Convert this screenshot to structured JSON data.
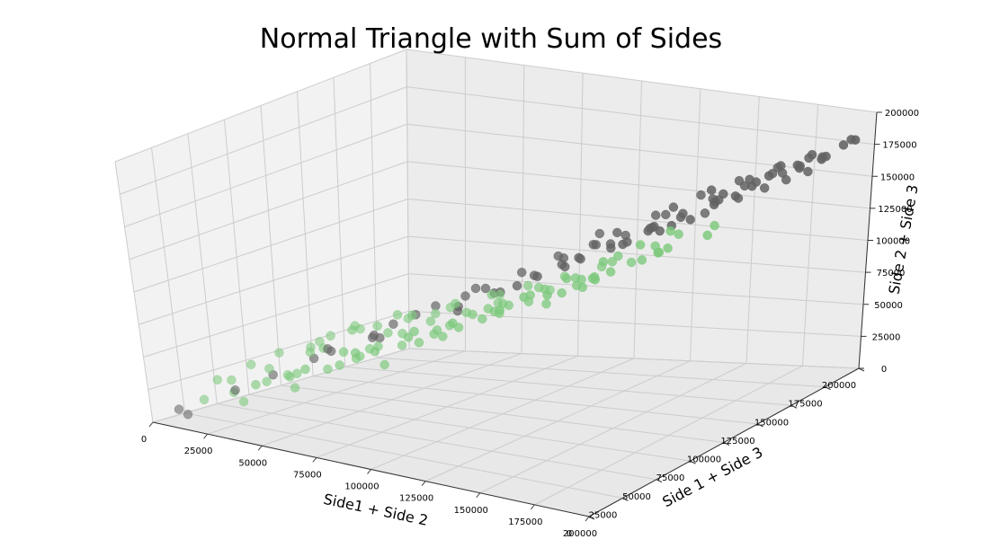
{
  "chart_data": {
    "type": "scatter",
    "title": "Normal Triangle with Sum of Sides",
    "xlabel": "Side1 + Side 2",
    "ylabel": "Side 1 + Side 3",
    "zlabel": "Side 2 + Side 3",
    "xlim": [
      0,
      200000
    ],
    "ylim": [
      0,
      200000
    ],
    "zlim": [
      0,
      200000
    ],
    "xticks": [
      0,
      25000,
      50000,
      75000,
      100000,
      125000,
      150000,
      175000,
      200000
    ],
    "yticks": [
      0,
      25000,
      50000,
      75000,
      100000,
      125000,
      150000,
      175000,
      200000
    ],
    "zticks": [
      0,
      25000,
      50000,
      75000,
      100000,
      125000,
      150000,
      175000,
      200000
    ],
    "grid": true,
    "legend": "none",
    "colors": {
      "green": "#7dc97d",
      "gray": "#636363",
      "pane": "#eeeeee",
      "grid": "#cccccc"
    },
    "series": [
      {
        "color": "#7dc97d",
        "points": [
          [
            18000,
            12000,
            20000
          ],
          [
            25000,
            30000,
            15000
          ],
          [
            30000,
            15000,
            38000
          ],
          [
            40000,
            45000,
            25000
          ],
          [
            45000,
            20000,
            50000
          ],
          [
            52000,
            60000,
            40000
          ],
          [
            55000,
            35000,
            60000
          ],
          [
            60000,
            80000,
            35000
          ],
          [
            62000,
            25000,
            70000
          ],
          [
            68000,
            50000,
            55000
          ],
          [
            70000,
            90000,
            50000
          ],
          [
            72000,
            40000,
            80000
          ],
          [
            78000,
            65000,
            60000
          ],
          [
            80000,
            30000,
            90000
          ],
          [
            82000,
            100000,
            60000
          ],
          [
            85000,
            55000,
            75000
          ],
          [
            88000,
            75000,
            70000
          ],
          [
            90000,
            45000,
            95000
          ],
          [
            92000,
            110000,
            70000
          ],
          [
            95000,
            60000,
            85000
          ],
          [
            98000,
            85000,
            80000
          ],
          [
            100000,
            40000,
            100000
          ],
          [
            102000,
            120000,
            80000
          ],
          [
            105000,
            70000,
            90000
          ],
          [
            108000,
            95000,
            85000
          ],
          [
            110000,
            55000,
            105000
          ],
          [
            112000,
            130000,
            90000
          ],
          [
            115000,
            80000,
            95000
          ],
          [
            118000,
            105000,
            95000
          ],
          [
            120000,
            65000,
            110000
          ],
          [
            122000,
            140000,
            100000
          ],
          [
            125000,
            90000,
            105000
          ],
          [
            128000,
            115000,
            100000
          ],
          [
            130000,
            75000,
            115000
          ],
          [
            132000,
            150000,
            110000
          ],
          [
            135000,
            100000,
            110000
          ],
          [
            138000,
            125000,
            115000
          ],
          [
            140000,
            85000,
            120000
          ],
          [
            142000,
            155000,
            120000
          ],
          [
            145000,
            110000,
            120000
          ],
          [
            148000,
            135000,
            120000
          ],
          [
            150000,
            95000,
            125000
          ],
          [
            35000,
            50000,
            30000
          ],
          [
            48000,
            70000,
            45000
          ],
          [
            58000,
            40000,
            62000
          ],
          [
            65000,
            95000,
            55000
          ],
          [
            75000,
            20000,
            85000
          ],
          [
            87000,
            35000,
            90000
          ],
          [
            96000,
            125000,
            75000
          ],
          [
            104000,
            50000,
            98000
          ],
          [
            115000,
            145000,
            85000
          ],
          [
            126000,
            60000,
            108000
          ],
          [
            134000,
            160000,
            100000
          ],
          [
            143000,
            70000,
            118000
          ],
          [
            22000,
            45000,
            22000
          ],
          [
            33000,
            65000,
            30000
          ],
          [
            44000,
            85000,
            38000
          ],
          [
            56000,
            105000,
            45000
          ],
          [
            67000,
            120000,
            52000
          ],
          [
            79000,
            135000,
            58000
          ],
          [
            91000,
            150000,
            65000
          ],
          [
            103000,
            165000,
            72000
          ],
          [
            28000,
            8000,
            40000
          ],
          [
            42000,
            12000,
            55000
          ],
          [
            57000,
            10000,
            70000
          ],
          [
            73000,
            15000,
            82000
          ],
          [
            89000,
            20000,
            95000
          ],
          [
            106000,
            28000,
            105000
          ],
          [
            121000,
            35000,
            115000
          ],
          [
            137000,
            45000,
            125000
          ],
          [
            50000,
            25000,
            45000
          ],
          [
            63000,
            55000,
            50000
          ],
          [
            76000,
            45000,
            65000
          ],
          [
            84000,
            85000,
            60000
          ],
          [
            97000,
            70000,
            78000
          ],
          [
            109000,
            120000,
            75000
          ],
          [
            117000,
            95000,
            90000
          ],
          [
            129000,
            110000,
            98000
          ],
          [
            139000,
            140000,
            105000
          ],
          [
            147000,
            120000,
            115000
          ],
          [
            38000,
            28000,
            35000
          ],
          [
            54000,
            48000,
            42000
          ],
          [
            69000,
            62000,
            58000
          ],
          [
            83000,
            48000,
            78000
          ],
          [
            94000,
            98000,
            70000
          ],
          [
            107000,
            82000,
            88000
          ],
          [
            119000,
            130000,
            85000
          ],
          [
            131000,
            118000,
            100000
          ],
          [
            144000,
            150000,
            110000
          ],
          [
            26000,
            22000,
            25000
          ],
          [
            46000,
            38000,
            40000
          ],
          [
            61000,
            72000,
            48000
          ],
          [
            77000,
            90000,
            58000
          ],
          [
            93000,
            112000,
            68000
          ],
          [
            111000,
            128000,
            80000
          ],
          [
            124000,
            142000,
            92000
          ],
          [
            136000,
            156000,
            102000
          ],
          [
            150000,
            168000,
            112000
          ],
          [
            155000,
            140000,
            128000
          ],
          [
            158000,
            160000,
            125000
          ]
        ]
      },
      {
        "color": "#636363",
        "points": [
          [
            10000,
            5000,
            12000
          ],
          [
            12000,
            8000,
            8000
          ],
          [
            28000,
            20000,
            28000
          ],
          [
            40000,
            30000,
            40000
          ],
          [
            55000,
            50000,
            55000
          ],
          [
            65000,
            70000,
            60000
          ],
          [
            78000,
            60000,
            78000
          ],
          [
            85000,
            95000,
            75000
          ],
          [
            95000,
            110000,
            85000
          ],
          [
            100000,
            85000,
            100000
          ],
          [
            110000,
            130000,
            100000
          ],
          [
            118000,
            115000,
            115000
          ],
          [
            125000,
            145000,
            120000
          ],
          [
            130000,
            125000,
            130000
          ],
          [
            140000,
            160000,
            135000
          ],
          [
            145000,
            140000,
            140000
          ],
          [
            150000,
            170000,
            145000
          ],
          [
            155000,
            155000,
            150000
          ],
          [
            160000,
            180000,
            150000
          ],
          [
            165000,
            165000,
            158000
          ],
          [
            170000,
            185000,
            160000
          ],
          [
            175000,
            175000,
            165000
          ],
          [
            180000,
            190000,
            168000
          ],
          [
            185000,
            180000,
            172000
          ],
          [
            190000,
            195000,
            175000
          ],
          [
            120000,
            160000,
            105000
          ],
          [
            128000,
            170000,
            110000
          ],
          [
            135000,
            180000,
            115000
          ],
          [
            142000,
            185000,
            125000
          ],
          [
            148000,
            190000,
            130000
          ],
          [
            160000,
            150000,
            140000
          ],
          [
            168000,
            160000,
            148000
          ],
          [
            176000,
            165000,
            155000
          ],
          [
            182000,
            170000,
            160000
          ],
          [
            188000,
            175000,
            165000
          ],
          [
            105000,
            150000,
            95000
          ],
          [
            115000,
            165000,
            100000
          ],
          [
            130000,
            175000,
            112000
          ],
          [
            138000,
            150000,
            125000
          ],
          [
            152000,
            175000,
            140000
          ],
          [
            162000,
            190000,
            148000
          ],
          [
            172000,
            195000,
            155000
          ],
          [
            178000,
            185000,
            160000
          ],
          [
            186000,
            190000,
            168000
          ],
          [
            193000,
            198000,
            178000
          ],
          [
            60000,
            40000,
            62000
          ],
          [
            72000,
            55000,
            70000
          ],
          [
            88000,
            75000,
            88000
          ],
          [
            98000,
            95000,
            95000
          ],
          [
            108000,
            105000,
            105000
          ],
          [
            112000,
            140000,
            100000
          ],
          [
            122000,
            135000,
            115000
          ],
          [
            135000,
            135000,
            125000
          ],
          [
            143000,
            150000,
            135000
          ],
          [
            157000,
            160000,
            145000
          ],
          [
            90000,
            130000,
            80000
          ],
          [
            102000,
            145000,
            90000
          ],
          [
            116000,
            155000,
            102000
          ],
          [
            126000,
            165000,
            112000
          ],
          [
            137000,
            170000,
            122000
          ],
          [
            147000,
            180000,
            132000
          ],
          [
            158000,
            185000,
            142000
          ],
          [
            166000,
            175000,
            152000
          ],
          [
            174000,
            180000,
            158000
          ],
          [
            181000,
            195000,
            162000
          ],
          [
            50000,
            45000,
            50000
          ],
          [
            68000,
            60000,
            65000
          ],
          [
            82000,
            70000,
            82000
          ],
          [
            92000,
            90000,
            90000
          ],
          [
            104000,
            120000,
            95000
          ],
          [
            114000,
            125000,
            108000
          ],
          [
            124000,
            130000,
            118000
          ],
          [
            133000,
            155000,
            120000
          ],
          [
            141000,
            165000,
            128000
          ],
          [
            153000,
            168000,
            138000
          ],
          [
            163000,
            172000,
            150000
          ],
          [
            171000,
            178000,
            158000
          ],
          [
            179000,
            182000,
            164000
          ],
          [
            187000,
            186000,
            170000
          ],
          [
            195000,
            192000,
            182000
          ],
          [
            76000,
            110000,
            70000
          ],
          [
            86000,
            120000,
            78000
          ],
          [
            96000,
            135000,
            86000
          ],
          [
            119000,
            150000,
            108000
          ],
          [
            131000,
            160000,
            118000
          ]
        ]
      }
    ]
  }
}
